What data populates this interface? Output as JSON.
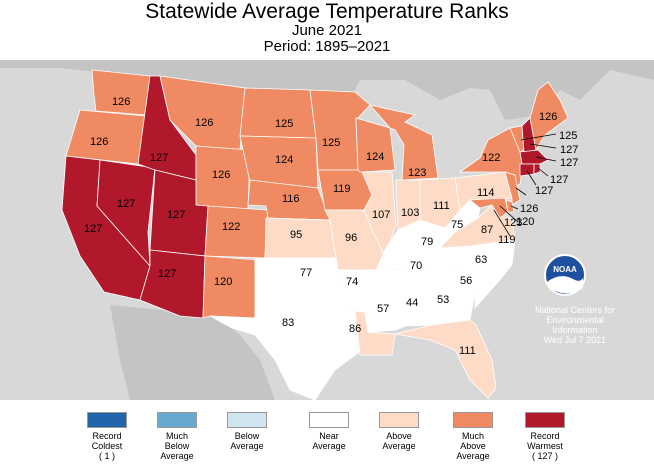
{
  "title": "Statewide Average Temperature Ranks",
  "subtitle": "June 2021",
  "period": "Period: 1895–2021",
  "colors": {
    "record_coldest": "#2166ac",
    "much_below": "#67a9cf",
    "below": "#d1e5f0",
    "near": "#ffffff",
    "above": "#fddbc7",
    "much_above": "#ef8a62",
    "record_warmest": "#b2182b",
    "ocean": "#d8d8d8",
    "land_other": "#c4c4c4"
  },
  "legend": [
    {
      "label": "Record\nColdest\n( 1 )",
      "color": "#2166ac"
    },
    {
      "label": "Much\nBelow\nAverage",
      "color": "#67a9cf"
    },
    {
      "label": "Below\nAverage",
      "color": "#d1e5f0"
    },
    {
      "label": "Near\nAverage",
      "color": "#ffffff"
    },
    {
      "label": "Above\nAverage",
      "color": "#fddbc7"
    },
    {
      "label": "Much\nAbove\nAverage",
      "color": "#ef8a62"
    },
    {
      "label": "Record\nWarmest\n( 127 )",
      "color": "#b2182b"
    }
  ],
  "states": {
    "WA": "126",
    "OR": "126",
    "CA": "127",
    "NV": "127",
    "ID": "127",
    "MT": "126",
    "WY": "126",
    "UT": "127",
    "AZ": "127",
    "CO": "122",
    "NM": "120",
    "ND": "125",
    "SD": "124",
    "NE": "116",
    "KS": "95",
    "OK": "77",
    "TX": "83",
    "MN": "125",
    "IA": "119",
    "MO": "96",
    "AR": "74",
    "LA": "86",
    "WI": "124",
    "IL": "107",
    "MS": "57",
    "MI": "123",
    "IN": "103",
    "KY": "79",
    "TN": "70",
    "AL": "44",
    "GA": "53",
    "FL": "111",
    "OH": "111",
    "WV": "75",
    "VA": "87",
    "NC": "63",
    "SC": "56",
    "PA": "114",
    "NY": "122",
    "ME": "126",
    "VT": "125",
    "NH": "127",
    "MA": "127",
    "RI": "127",
    "CT": "127",
    "NJ": "126",
    "DE": "120",
    "MD": "123",
    "DC": "119"
  },
  "noaa": {
    "logo_text": "NOAA",
    "agency": "National Centers for\nEnvironmental\nInformation",
    "date": "Wed Jul  7 2021"
  }
}
